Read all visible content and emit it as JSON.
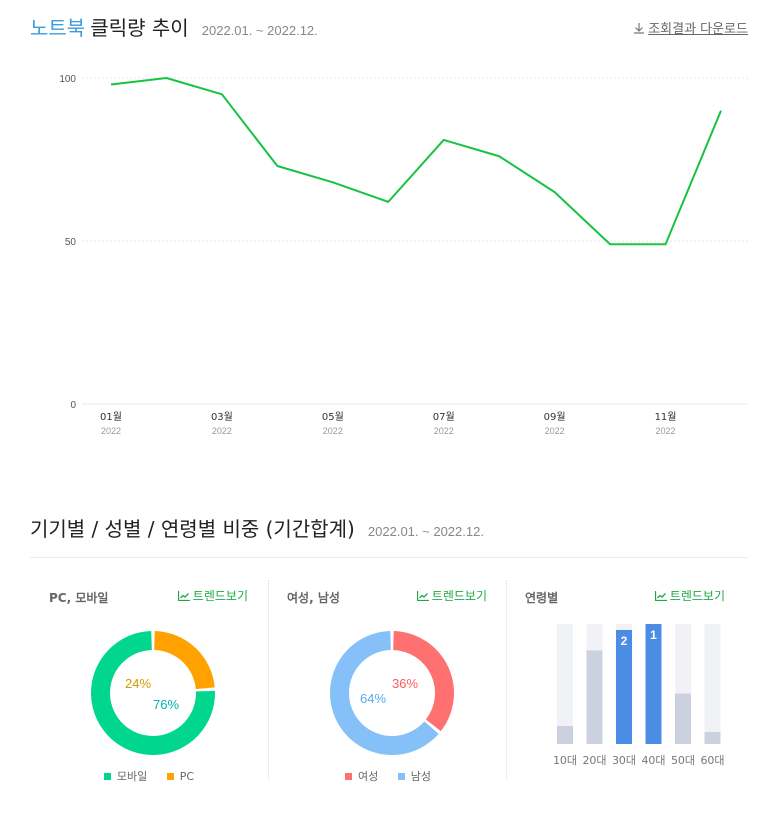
{
  "header": {
    "keyword": "노트북",
    "title": "클릭량 추이",
    "period": "2022.01. ~ 2022.12.",
    "download_label": "조회결과 다운로드"
  },
  "chart_data": [
    {
      "type": "line",
      "x": [
        "2022-01",
        "2022-02",
        "2022-03",
        "2022-04",
        "2022-05",
        "2022-06",
        "2022-07",
        "2022-08",
        "2022-09",
        "2022-10",
        "2022-11",
        "2022-12"
      ],
      "x_tick_labels": [
        {
          "month": "01월",
          "year": "2022"
        },
        {
          "month": "03월",
          "year": "2022"
        },
        {
          "month": "05월",
          "year": "2022"
        },
        {
          "month": "07월",
          "year": "2022"
        },
        {
          "month": "09월",
          "year": "2022"
        },
        {
          "month": "11월",
          "year": "2022"
        }
      ],
      "series": [
        {
          "values": [
            98,
            100,
            95,
            73,
            68,
            62,
            81,
            76,
            65,
            49,
            49,
            90
          ],
          "color": "#18c342"
        }
      ],
      "y_ticks": [
        "100",
        "50",
        "0"
      ],
      "ylim": [
        0,
        100
      ],
      "grid": true
    },
    {
      "type": "pie",
      "labels": [
        "모바일",
        "PC"
      ],
      "values": [
        76,
        24
      ],
      "value_labels": [
        "76%",
        "24%"
      ],
      "colors": [
        "#00d68e",
        "#ffa200"
      ],
      "label_colors": [
        "#00b4b4",
        "#d39a00"
      ]
    },
    {
      "type": "pie",
      "labels": [
        "여성",
        "남성"
      ],
      "values": [
        36,
        64
      ],
      "value_labels": [
        "36%",
        "64%"
      ],
      "colors": [
        "#ff7070",
        "#85c1f8"
      ],
      "label_colors": [
        "#ff5b5b",
        "#5aaaf0"
      ]
    },
    {
      "type": "bar",
      "categories": [
        "10대",
        "20대",
        "30대",
        "40대",
        "50대",
        "60대"
      ],
      "values": [
        15,
        78,
        95,
        100,
        42,
        10
      ],
      "rank_labels": [
        "",
        "",
        "2",
        "1",
        "",
        ""
      ],
      "highlight_color": "#4b8de4",
      "normal_color": "#cbd1de",
      "track_color": "#f1f2f6",
      "ylim": [
        0,
        100
      ]
    }
  ],
  "section2": {
    "title": "기기별 / 성별 / 연령별 비중 (기간합계)",
    "period": "2022.01. ~ 2022.12."
  },
  "panels": {
    "device": {
      "name": "PC, 모바일",
      "trend_label": "트렌드보기"
    },
    "gender": {
      "name": "여성, 남성",
      "trend_label": "트렌드보기"
    },
    "age": {
      "name": "연령별",
      "trend_label": "트렌드보기"
    }
  },
  "colors": {
    "accent": "#3d9be0",
    "trend": "#1ea846",
    "line": "#18c342"
  }
}
